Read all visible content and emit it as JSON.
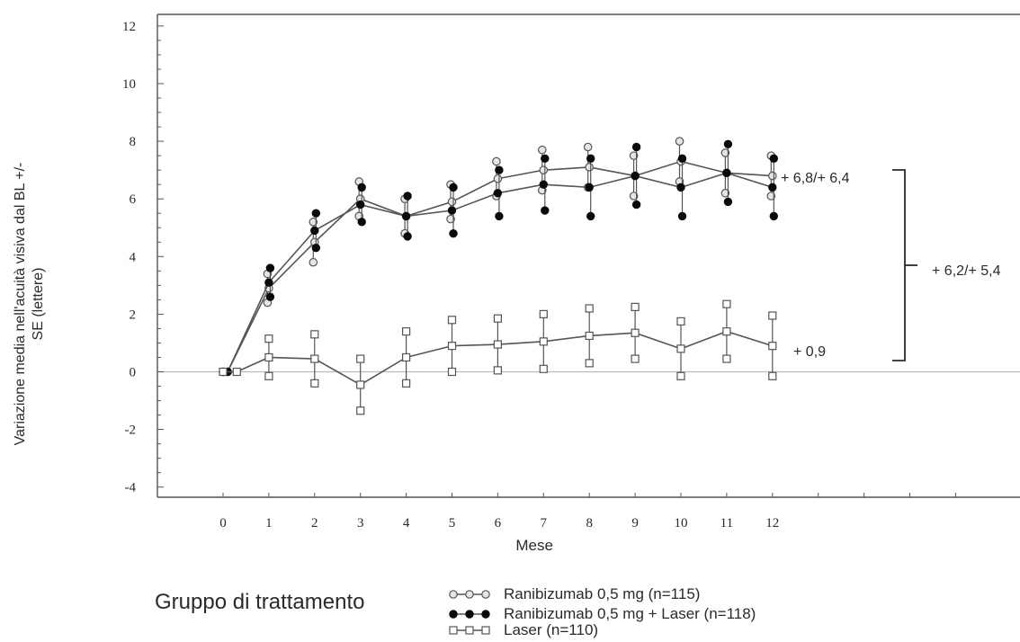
{
  "chart_data": {
    "type": "line",
    "xlabel": "Mese",
    "ylabel_lines": [
      "Variazione media nell'acuità visiva dal BL +/-",
      "SE (lettere)"
    ],
    "x_ticks": [
      0,
      1,
      2,
      3,
      4,
      5,
      6,
      7,
      8,
      9,
      10,
      11,
      12
    ],
    "y_ticks": [
      -4,
      -2,
      0,
      2,
      4,
      6,
      8,
      10,
      12
    ],
    "ylim": [
      -4.4,
      12.3
    ],
    "grid": false,
    "legend_position": "bottom",
    "series": [
      {
        "name": "Ranibizumab 0,5 mg (n=115)",
        "marker": "open-circle",
        "x": [
          0,
          0.1,
          1,
          2,
          3,
          4,
          5,
          6,
          7,
          8,
          9,
          10,
          11,
          12
        ],
        "y": [
          0,
          0,
          2.9,
          4.5,
          6.0,
          5.4,
          5.9,
          6.7,
          7.0,
          7.1,
          6.8,
          7.3,
          6.9,
          6.8
        ],
        "err": [
          0,
          0,
          0.5,
          0.7,
          0.6,
          0.6,
          0.6,
          0.6,
          0.7,
          0.7,
          0.7,
          0.7,
          0.7,
          0.7
        ]
      },
      {
        "name": "Ranibizumab 0,5 mg + Laser (n=118)",
        "marker": "filled-circle",
        "x": [
          0,
          0.1,
          1,
          2,
          3,
          4,
          5,
          6,
          7,
          8,
          9,
          10,
          11,
          12
        ],
        "y": [
          0,
          0,
          3.1,
          4.9,
          5.8,
          5.4,
          5.6,
          6.2,
          6.5,
          6.4,
          6.8,
          6.4,
          6.9,
          6.4
        ],
        "err": [
          0,
          0,
          0.5,
          0.6,
          0.6,
          0.7,
          0.8,
          0.8,
          0.9,
          1.0,
          1.0,
          1.0,
          1.0,
          1.0
        ]
      },
      {
        "name": "Laser (n=110)",
        "marker": "open-square",
        "x": [
          0,
          0.3,
          1,
          2,
          3,
          4,
          5,
          6,
          7,
          8,
          9,
          10,
          11,
          12
        ],
        "y": [
          0,
          0,
          0.5,
          0.45,
          -0.45,
          0.5,
          0.9,
          0.95,
          1.05,
          1.25,
          1.35,
          0.8,
          1.4,
          0.9
        ],
        "err": [
          0,
          0,
          0.65,
          0.85,
          0.9,
          0.9,
          0.9,
          0.9,
          0.95,
          0.95,
          0.9,
          0.95,
          0.95,
          1.05
        ]
      }
    ],
    "annotations": {
      "ranibizumab_final": "+ 6,8/+ 6,4",
      "laser_final": "+ 0,9",
      "difference": "+ 6,2/+ 5,4"
    },
    "legend_title": "Gruppo di trattamento"
  },
  "colors": {
    "line": "#555555",
    "axis": "#555555",
    "zero_line": "#bbbbbb",
    "filled": "#0a0a0a"
  }
}
